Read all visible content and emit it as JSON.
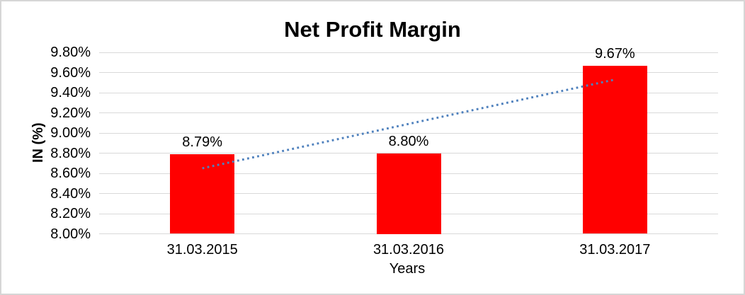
{
  "window": {
    "background": "#ffffff",
    "border_color": "#d6d6d6"
  },
  "chart_data": {
    "type": "bar",
    "title": "Net Profit Margin",
    "xlabel": "Years",
    "ylabel": "IN (%)",
    "categories": [
      "31.03.2015",
      "31.03.2016",
      "31.03.2017"
    ],
    "values": [
      8.79,
      8.8,
      9.67
    ],
    "data_labels": [
      "8.79%",
      "8.80%",
      "9.67%"
    ],
    "ylim": [
      8.0,
      9.8
    ],
    "ytick_step": 0.2,
    "ytick_labels": [
      "9.80%",
      "9.60%",
      "9.40%",
      "9.20%",
      "9.00%",
      "8.80%",
      "8.60%",
      "8.40%",
      "8.20%",
      "8.00%"
    ],
    "grid": true,
    "legend": "none",
    "bar_color": "#ff0000",
    "gridline_color": "#d9d9d9",
    "text_color": "#000000",
    "trendline": {
      "type": "linear",
      "style": "dotted",
      "color": "#4f81bd",
      "start_value": 8.65,
      "end_value": 9.53
    }
  }
}
